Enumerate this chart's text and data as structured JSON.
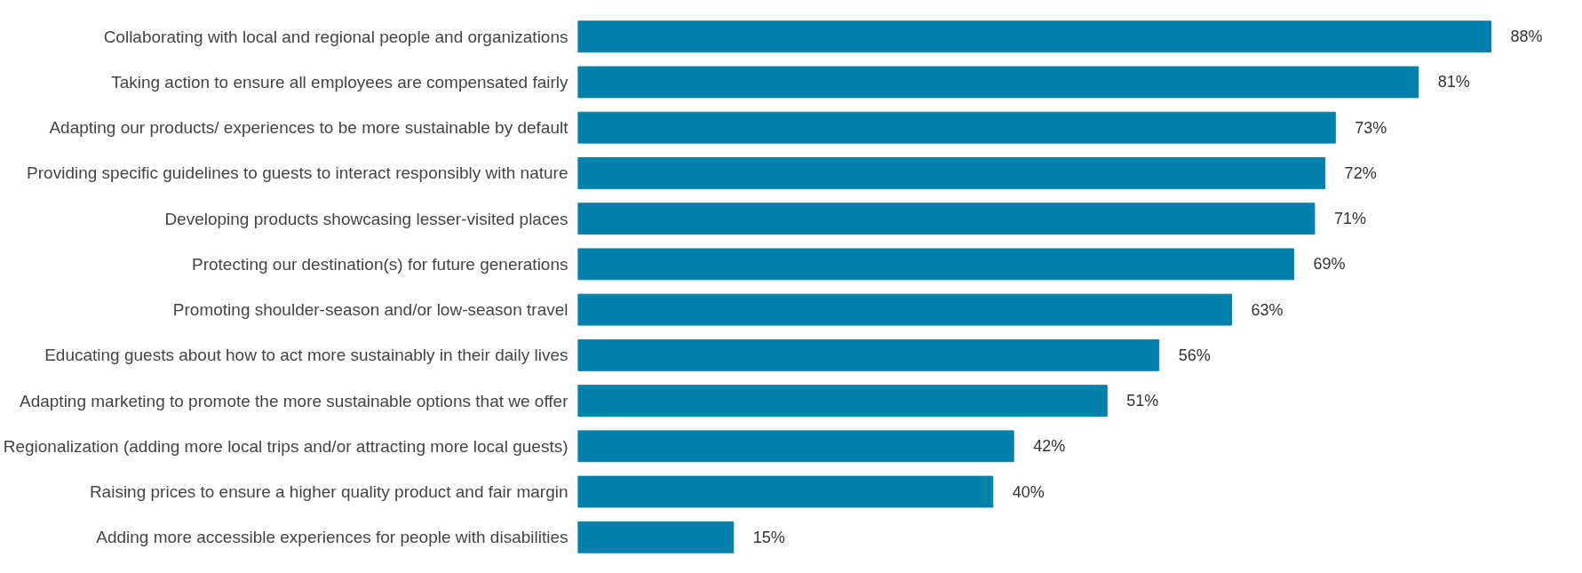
{
  "chart_data": {
    "type": "bar",
    "orientation": "horizontal",
    "color": "#0080ab",
    "grid": false,
    "categories": [
      "Collaborating with local and regional people and organizations",
      "Taking action to ensure all employees are compensated fairly",
      "Adapting our products/ experiences to be more sustainable by default",
      "Providing specific guidelines to guests to interact responsibly with nature",
      "Developing products showcasing lesser-visited places",
      "Protecting our destination(s) for future generations",
      "Promoting shoulder-season and/or low-season travel",
      "Educating guests about how to act more sustainably in their daily lives",
      "Adapting marketing to promote the more sustainable options that we offer",
      "Regionalization (adding more local trips and/or attracting more local guests)",
      "Raising prices to ensure a higher quality product and fair margin",
      "Adding more accessible experiences for people with disabilities"
    ],
    "values": [
      88,
      81,
      73,
      72,
      71,
      69,
      63,
      56,
      51,
      42,
      40,
      15
    ],
    "value_labels": [
      "88%",
      "81%",
      "73%",
      "72%",
      "71%",
      "69%",
      "63%",
      "56%",
      "51%",
      "42%",
      "40%",
      "15%"
    ]
  }
}
